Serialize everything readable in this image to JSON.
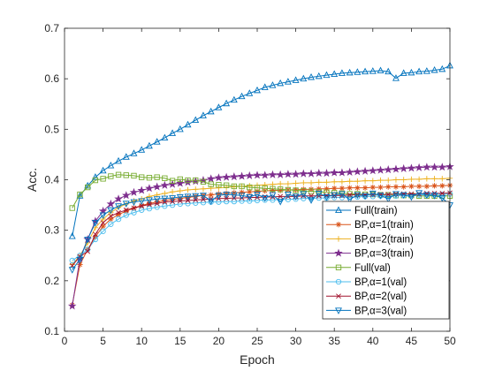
{
  "chart_data": {
    "type": "line",
    "xlabel": "Epoch",
    "ylabel": "Acc.",
    "xlim": [
      0,
      50
    ],
    "ylim": [
      0.1,
      0.7
    ],
    "xticks": [
      0,
      5,
      10,
      15,
      20,
      25,
      30,
      35,
      40,
      45,
      50
    ],
    "yticks": [
      0.1,
      0.2,
      0.3,
      0.4,
      0.5,
      0.6,
      0.7
    ],
    "grid": false,
    "legend_position": "bottom-right",
    "x": [
      1,
      2,
      3,
      4,
      5,
      6,
      7,
      8,
      9,
      10,
      11,
      12,
      13,
      14,
      15,
      16,
      17,
      18,
      19,
      20,
      21,
      22,
      23,
      24,
      25,
      26,
      27,
      28,
      29,
      30,
      31,
      32,
      33,
      34,
      35,
      36,
      37,
      38,
      39,
      40,
      41,
      42,
      43,
      44,
      45,
      46,
      47,
      48,
      49,
      50
    ],
    "series": [
      {
        "name": "Full(train)",
        "color": "#0072BD",
        "marker": "triangle-up",
        "values": [
          0.288,
          0.368,
          0.388,
          0.405,
          0.418,
          0.428,
          0.437,
          0.445,
          0.452,
          0.459,
          0.467,
          0.475,
          0.483,
          0.492,
          0.5,
          0.509,
          0.518,
          0.527,
          0.535,
          0.543,
          0.551,
          0.558,
          0.565,
          0.571,
          0.577,
          0.583,
          0.587,
          0.591,
          0.594,
          0.597,
          0.6,
          0.603,
          0.605,
          0.607,
          0.609,
          0.611,
          0.612,
          0.613,
          0.614,
          0.615,
          0.616,
          0.614,
          0.601,
          0.611,
          0.612,
          0.614,
          0.615,
          0.617,
          0.619,
          0.626
        ]
      },
      {
        "name": "BP,α=1(train)",
        "color": "#D95319",
        "marker": "asterisk",
        "values": [
          0.152,
          0.232,
          0.262,
          0.287,
          0.308,
          0.322,
          0.331,
          0.338,
          0.344,
          0.349,
          0.353,
          0.356,
          0.359,
          0.361,
          0.363,
          0.365,
          0.367,
          0.369,
          0.37,
          0.372,
          0.373,
          0.374,
          0.375,
          0.376,
          0.377,
          0.378,
          0.379,
          0.379,
          0.38,
          0.38,
          0.381,
          0.381,
          0.382,
          0.382,
          0.383,
          0.383,
          0.384,
          0.384,
          0.384,
          0.385,
          0.385,
          0.386,
          0.386,
          0.386,
          0.387,
          0.387,
          0.387,
          0.388,
          0.388,
          0.389
        ]
      },
      {
        "name": "BP,α=2(train)",
        "color": "#EDB120",
        "marker": "plus",
        "values": [
          0.232,
          0.25,
          0.275,
          0.305,
          0.322,
          0.335,
          0.345,
          0.352,
          0.358,
          0.362,
          0.367,
          0.37,
          0.373,
          0.376,
          0.378,
          0.38,
          0.381,
          0.382,
          0.383,
          0.384,
          0.385,
          0.386,
          0.387,
          0.388,
          0.389,
          0.39,
          0.391,
          0.392,
          0.392,
          0.393,
          0.394,
          0.394,
          0.395,
          0.395,
          0.396,
          0.396,
          0.397,
          0.397,
          0.398,
          0.398,
          0.399,
          0.399,
          0.4,
          0.4,
          0.401,
          0.401,
          0.402,
          0.402,
          0.402,
          0.403
        ]
      },
      {
        "name": "BP,α=3(train)",
        "color": "#7E2F8E",
        "marker": "pentagram",
        "values": [
          0.15,
          0.244,
          0.282,
          0.318,
          0.338,
          0.352,
          0.362,
          0.369,
          0.375,
          0.379,
          0.383,
          0.386,
          0.389,
          0.391,
          0.393,
          0.395,
          0.397,
          0.399,
          0.402,
          0.404,
          0.405,
          0.406,
          0.407,
          0.408,
          0.409,
          0.409,
          0.41,
          0.41,
          0.411,
          0.411,
          0.412,
          0.412,
          0.413,
          0.413,
          0.414,
          0.414,
          0.415,
          0.416,
          0.417,
          0.418,
          0.419,
          0.42,
          0.421,
          0.422,
          0.423,
          0.424,
          0.425,
          0.425,
          0.425,
          0.426
        ]
      },
      {
        "name": "Full(val)",
        "color": "#77AC30",
        "marker": "square",
        "values": [
          0.344,
          0.371,
          0.385,
          0.399,
          0.402,
          0.407,
          0.41,
          0.409,
          0.408,
          0.405,
          0.404,
          0.405,
          0.403,
          0.398,
          0.401,
          0.399,
          0.399,
          0.396,
          0.391,
          0.39,
          0.389,
          0.387,
          0.387,
          0.385,
          0.384,
          0.383,
          0.382,
          0.381,
          0.38,
          0.379,
          0.378,
          0.377,
          0.376,
          0.375,
          0.374,
          0.373,
          0.372,
          0.372,
          0.371,
          0.371,
          0.37,
          0.37,
          0.369,
          0.369,
          0.369,
          0.368,
          0.368,
          0.368,
          0.368,
          0.368
        ]
      },
      {
        "name": "BP,α=1(val)",
        "color": "#4DBEEE",
        "marker": "circle",
        "values": [
          0.24,
          0.25,
          0.262,
          0.282,
          0.298,
          0.312,
          0.322,
          0.33,
          0.335,
          0.34,
          0.343,
          0.346,
          0.348,
          0.35,
          0.352,
          0.353,
          0.354,
          0.355,
          0.356,
          0.356,
          0.357,
          0.357,
          0.358,
          0.358,
          0.359,
          0.36,
          0.36,
          0.361,
          0.361,
          0.362,
          0.363,
          0.363,
          0.364,
          0.364,
          0.365,
          0.365,
          0.366,
          0.366,
          0.367,
          0.367,
          0.368,
          0.368,
          0.368,
          0.369,
          0.369,
          0.37,
          0.37,
          0.371,
          0.371,
          0.372
        ]
      },
      {
        "name": "BP,α=2(val)",
        "color": "#A2142F",
        "marker": "x",
        "values": [
          0.23,
          0.248,
          0.258,
          0.292,
          0.315,
          0.328,
          0.335,
          0.34,
          0.344,
          0.348,
          0.351,
          0.353,
          0.356,
          0.357,
          0.358,
          0.359,
          0.36,
          0.361,
          0.362,
          0.363,
          0.363,
          0.364,
          0.364,
          0.365,
          0.365,
          0.366,
          0.366,
          0.367,
          0.367,
          0.367,
          0.368,
          0.368,
          0.368,
          0.369,
          0.369,
          0.369,
          0.37,
          0.37,
          0.37,
          0.371,
          0.371,
          0.371,
          0.372,
          0.372,
          0.372,
          0.372,
          0.373,
          0.373,
          0.373,
          0.374
        ]
      },
      {
        "name": "BP,α=3(val)",
        "color": "#0072BD",
        "marker": "triangle-down",
        "values": [
          0.222,
          0.242,
          0.282,
          0.315,
          0.33,
          0.34,
          0.348,
          0.353,
          0.356,
          0.358,
          0.36,
          0.362,
          0.363,
          0.364,
          0.366,
          0.367,
          0.368,
          0.369,
          0.358,
          0.369,
          0.371,
          0.37,
          0.369,
          0.366,
          0.371,
          0.364,
          0.37,
          0.357,
          0.371,
          0.367,
          0.372,
          0.36,
          0.373,
          0.366,
          0.37,
          0.372,
          0.361,
          0.37,
          0.368,
          0.373,
          0.369,
          0.362,
          0.372,
          0.37,
          0.366,
          0.374,
          0.37,
          0.369,
          0.364,
          0.35
        ]
      }
    ]
  }
}
